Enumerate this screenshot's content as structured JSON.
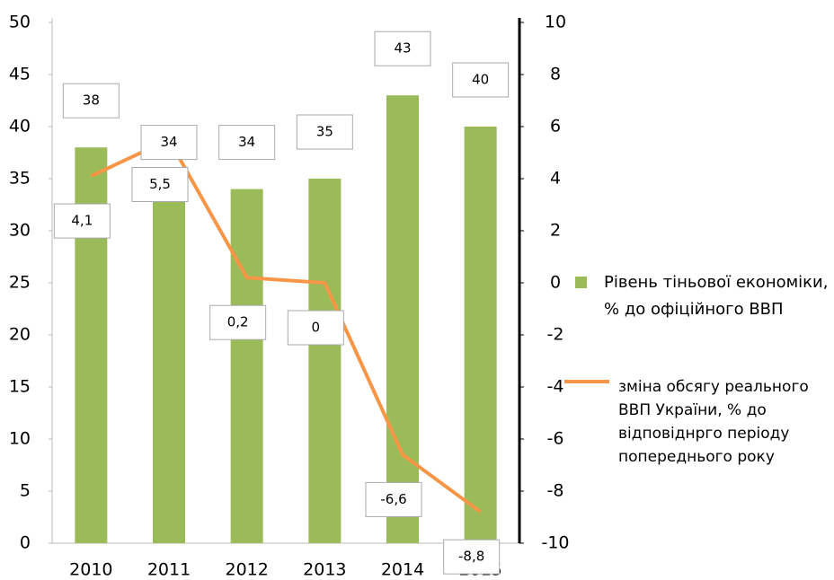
{
  "chart_data": {
    "type": "bar",
    "categories": [
      "2010",
      "2011",
      "2012",
      "2013",
      "2014",
      "2015"
    ],
    "series": [
      {
        "name": "Рівень тіньової економіки, % до офіційного  ВВП",
        "color": "#9bbb59",
        "type": "bar",
        "values": [
          38,
          34,
          34,
          35,
          43,
          40
        ]
      },
      {
        "name": "зміна обсягу реального ВВП України, % до відповіднрго періоду попереднього року",
        "color": "#f79646",
        "type": "line",
        "axis": "y2",
        "values": [
          4.1,
          5.5,
          0.2,
          0,
          -6.6,
          -8.8
        ],
        "value_labels": [
          "4,1",
          "5,5",
          "0,2",
          "0",
          "-6,6",
          "-8,8"
        ]
      }
    ],
    "ylim": [
      0,
      50
    ],
    "yticks": [
      0,
      5,
      10,
      15,
      20,
      25,
      30,
      35,
      40,
      45,
      50
    ],
    "y2lim": [
      -10,
      10
    ],
    "y2ticks": [
      -10,
      -8,
      -6,
      -4,
      -2,
      0,
      2,
      4,
      6,
      8,
      10
    ]
  }
}
